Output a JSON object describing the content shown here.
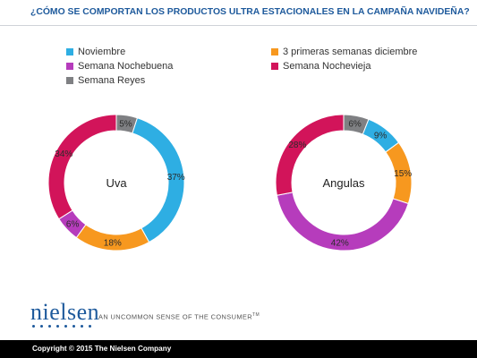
{
  "page": {
    "title": "¿CÓMO SE COMPORTAN LOS PRODUCTOS ULTRA ESTACIONALES EN LA CAMPAÑA NAVIDEÑA?"
  },
  "legend": [
    {
      "label": "Noviembre",
      "color": "#2eaee3"
    },
    {
      "label": "3 primeras semanas diciembre",
      "color": "#f7981f"
    },
    {
      "label": "Semana Nochebuena",
      "color": "#b63cbc"
    },
    {
      "label": "Semana Nochevieja",
      "color": "#d2145a"
    },
    {
      "label": "Semana Reyes",
      "color": "#7f8083"
    }
  ],
  "chart_data": [
    {
      "type": "pie",
      "title": "Uva",
      "categories": [
        "Noviembre",
        "3 primeras semanas diciembre",
        "Semana Nochebuena",
        "Semana Nochevieja",
        "Semana Reyes"
      ],
      "values": [
        37,
        18,
        6,
        34,
        5
      ],
      "labels": [
        "37%",
        "18%",
        "6%",
        "34%",
        "5%"
      ]
    },
    {
      "type": "pie",
      "title": "Angulas",
      "categories": [
        "Noviembre",
        "3 primeras semanas diciembre",
        "Semana Nochebuena",
        "Semana Nochevieja",
        "Semana Reyes"
      ],
      "values": [
        9,
        15,
        42,
        28,
        6
      ],
      "labels": [
        "9%",
        "15%",
        "42%",
        "28%",
        "6%"
      ]
    }
  ],
  "brand": {
    "logo": "nielsen",
    "tagline": "AN UNCOMMON SENSE OF THE CONSUMER",
    "tagline_mark": "TM"
  },
  "footer": {
    "copyright": "Copyright © 2015 The Nielsen Company"
  }
}
